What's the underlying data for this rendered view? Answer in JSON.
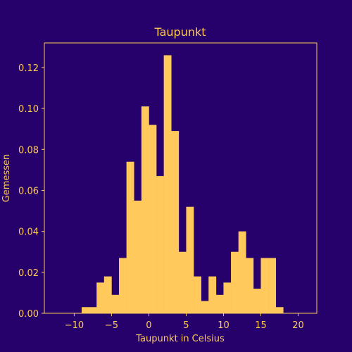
{
  "colors": {
    "background": "#26016b",
    "bar": "#ffc95b",
    "text": "#ffc95b",
    "axis": "#ffc95b"
  },
  "chart_data": {
    "type": "bar",
    "title": "Taupunkt",
    "xlabel": "Taupunkt in Celsius",
    "ylabel": "Gemessen",
    "xlim": [
      -14,
      22.5
    ],
    "ylim": [
      0,
      0.132
    ],
    "grid": false,
    "legend": "none",
    "x_ticks": [
      -10,
      -5,
      0,
      5,
      10,
      15,
      20
    ],
    "x_tick_labels": [
      "−10",
      "−5",
      "0",
      "5",
      "10",
      "15",
      "20"
    ],
    "y_ticks": [
      0.0,
      0.02,
      0.04,
      0.06,
      0.08,
      0.1,
      0.12
    ],
    "y_tick_labels": [
      "0.00",
      "0.02",
      "0.04",
      "0.06",
      "0.08",
      "0.10",
      "0.12"
    ],
    "bins": [
      {
        "x0": -9.0,
        "x1": -8.0,
        "value": 0.003
      },
      {
        "x0": -8.0,
        "x1": -7.0,
        "value": 0.003
      },
      {
        "x0": -7.0,
        "x1": -6.0,
        "value": 0.015
      },
      {
        "x0": -6.0,
        "x1": -5.0,
        "value": 0.018
      },
      {
        "x0": -5.0,
        "x1": -4.0,
        "value": 0.009
      },
      {
        "x0": -4.0,
        "x1": -3.0,
        "value": 0.027
      },
      {
        "x0": -3.0,
        "x1": -2.0,
        "value": 0.074
      },
      {
        "x0": -2.0,
        "x1": -1.0,
        "value": 0.055
      },
      {
        "x0": -1.0,
        "x1": 0.0,
        "value": 0.101
      },
      {
        "x0": 0.0,
        "x1": 1.0,
        "value": 0.092
      },
      {
        "x0": 1.0,
        "x1": 2.0,
        "value": 0.067
      },
      {
        "x0": 2.0,
        "x1": 3.0,
        "value": 0.126
      },
      {
        "x0": 3.0,
        "x1": 4.0,
        "value": 0.089
      },
      {
        "x0": 4.0,
        "x1": 5.0,
        "value": 0.03
      },
      {
        "x0": 5.0,
        "x1": 6.0,
        "value": 0.052
      },
      {
        "x0": 6.0,
        "x1": 7.0,
        "value": 0.018
      },
      {
        "x0": 7.0,
        "x1": 8.0,
        "value": 0.006
      },
      {
        "x0": 8.0,
        "x1": 9.0,
        "value": 0.018
      },
      {
        "x0": 9.0,
        "x1": 10.0,
        "value": 0.009
      },
      {
        "x0": 10.0,
        "x1": 11.0,
        "value": 0.015
      },
      {
        "x0": 11.0,
        "x1": 12.0,
        "value": 0.03
      },
      {
        "x0": 12.0,
        "x1": 13.0,
        "value": 0.04
      },
      {
        "x0": 13.0,
        "x1": 14.0,
        "value": 0.027
      },
      {
        "x0": 14.0,
        "x1": 15.0,
        "value": 0.012
      },
      {
        "x0": 15.0,
        "x1": 16.0,
        "value": 0.027
      },
      {
        "x0": 16.0,
        "x1": 17.0,
        "value": 0.027
      },
      {
        "x0": 17.0,
        "x1": 18.0,
        "value": 0.003
      }
    ]
  }
}
